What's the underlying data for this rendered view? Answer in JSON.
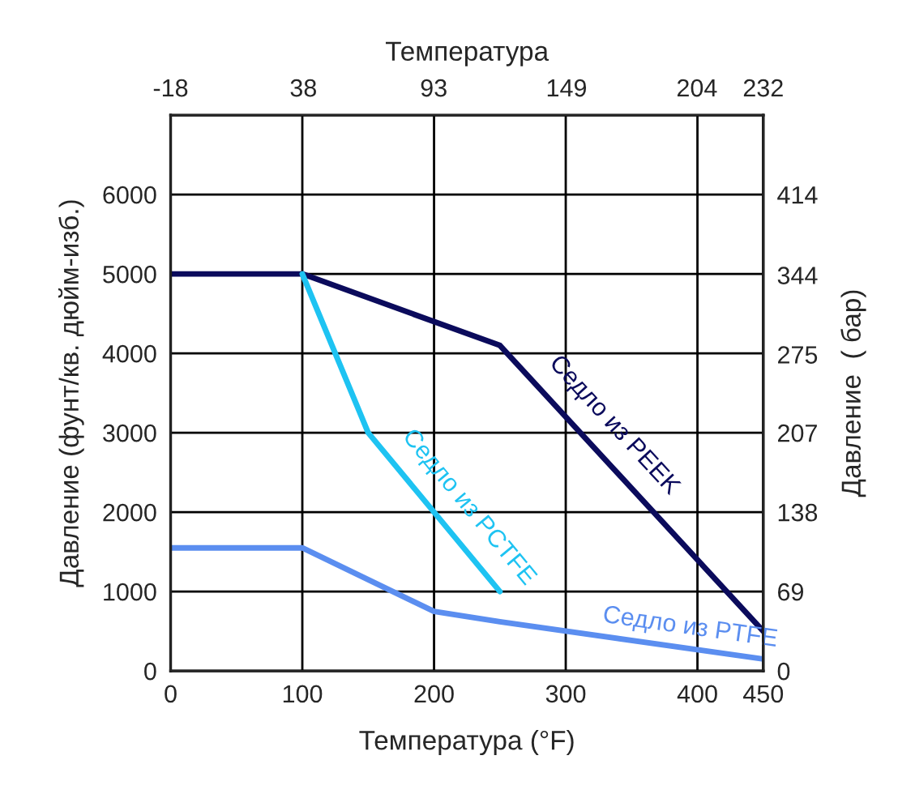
{
  "chart_data": {
    "type": "line",
    "xlabel": "Температура (°F)",
    "ylabel": "Давление (фунт/кв. дюйм-изб.)",
    "y2label": "Давление  ( бар)",
    "x2label": "Температура",
    "xlim": [
      0,
      450
    ],
    "xticks": [
      0,
      100,
      200,
      300,
      400,
      450
    ],
    "ylim": [
      0,
      7000
    ],
    "yticks": [
      0,
      1000,
      2000,
      3000,
      4000,
      5000,
      6000
    ],
    "y2lim": [
      0,
      483
    ],
    "y2ticks": [
      0,
      69,
      138,
      207,
      275,
      344,
      414
    ],
    "x2lim": [
      -18,
      232
    ],
    "x2ticks": [
      -18,
      38,
      93,
      149,
      204,
      232
    ],
    "grid": true,
    "legend": false,
    "marker": "none",
    "line_style": "solid",
    "series": [
      {
        "name": "Седло из PEEK",
        "color": "#0b0b5c",
        "x": [
          0,
          100,
          250,
          450
        ],
        "values": [
          5000,
          5000,
          4100,
          500
        ]
      },
      {
        "name": "Седло из PCTFE",
        "color": "#1ec3f2",
        "x": [
          100,
          150,
          250
        ],
        "values": [
          5000,
          3000,
          1000
        ]
      },
      {
        "name": "Седло из PTFE",
        "color": "#5b8ef0",
        "x": [
          0,
          100,
          200,
          250,
          450
        ],
        "values": [
          1550,
          1550,
          750,
          620,
          150
        ]
      }
    ]
  }
}
